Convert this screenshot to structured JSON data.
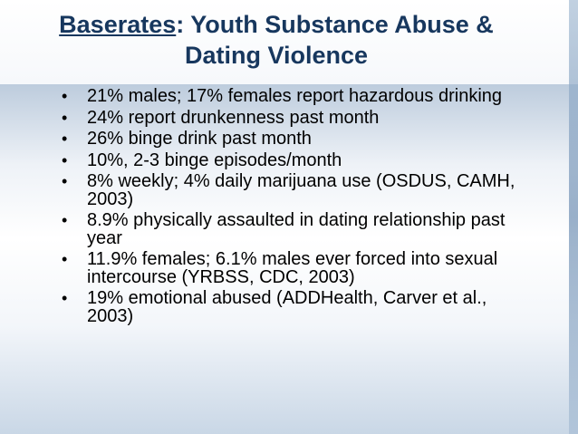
{
  "slide": {
    "title_underlined": "Baserates",
    "title_rest_line1": ": Youth Substance Abuse &",
    "title_line2": "Dating Violence",
    "bullets": [
      "21% males; 17% females report hazardous drinking",
      "24% report drunkenness past month",
      "26% binge drink past month",
      "10%, 2-3 binge episodes/month",
      "8% weekly; 4% daily marijuana use (OSDUS, CAMH, 2003)",
      "8.9% physically assaulted in dating relationship past year",
      "11.9% females; 6.1% males ever forced into sexual intercourse (YRBSS, CDC, 2003)",
      "19% emotional abused (ADDHealth, Carver et al., 2003)"
    ],
    "bullet_glyph": "•",
    "colors": {
      "title": "#17375e",
      "text": "#000000",
      "background_accent": "#87a2bf"
    }
  }
}
